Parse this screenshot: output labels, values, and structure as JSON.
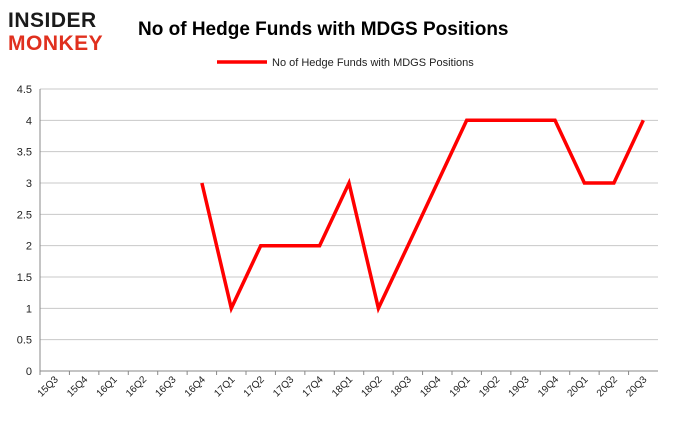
{
  "logo": {
    "line1": "INSIDER",
    "line2": "MONKEY",
    "line1_color": "#1a1a1a",
    "line2_color": "#e0301e"
  },
  "chart_data": {
    "type": "line",
    "title": "No of Hedge Funds with MDGS Positions",
    "xlabel": "",
    "ylabel": "",
    "legend_position": "top-center",
    "grid": true,
    "ylim": [
      0,
      4.5
    ],
    "yticks": [
      "0",
      "0.5",
      "1",
      "1.5",
      "2",
      "2.5",
      "3",
      "3.5",
      "4",
      "4.5"
    ],
    "categories": [
      "15Q3",
      "15Q4",
      "16Q1",
      "16Q2",
      "16Q3",
      "16Q4",
      "17Q1",
      "17Q2",
      "17Q3",
      "17Q4",
      "18Q1",
      "18Q2",
      "18Q3",
      "18Q4",
      "19Q1",
      "19Q2",
      "19Q3",
      "19Q4",
      "20Q1",
      "20Q2",
      "20Q3"
    ],
    "series": [
      {
        "name": "No of Hedge Funds with MDGS Positions",
        "color": "#ff0000",
        "values": [
          null,
          null,
          null,
          null,
          null,
          3,
          1,
          2,
          2,
          2,
          3,
          1,
          2,
          3,
          4,
          4,
          4,
          4,
          3,
          3,
          4
        ]
      }
    ]
  }
}
